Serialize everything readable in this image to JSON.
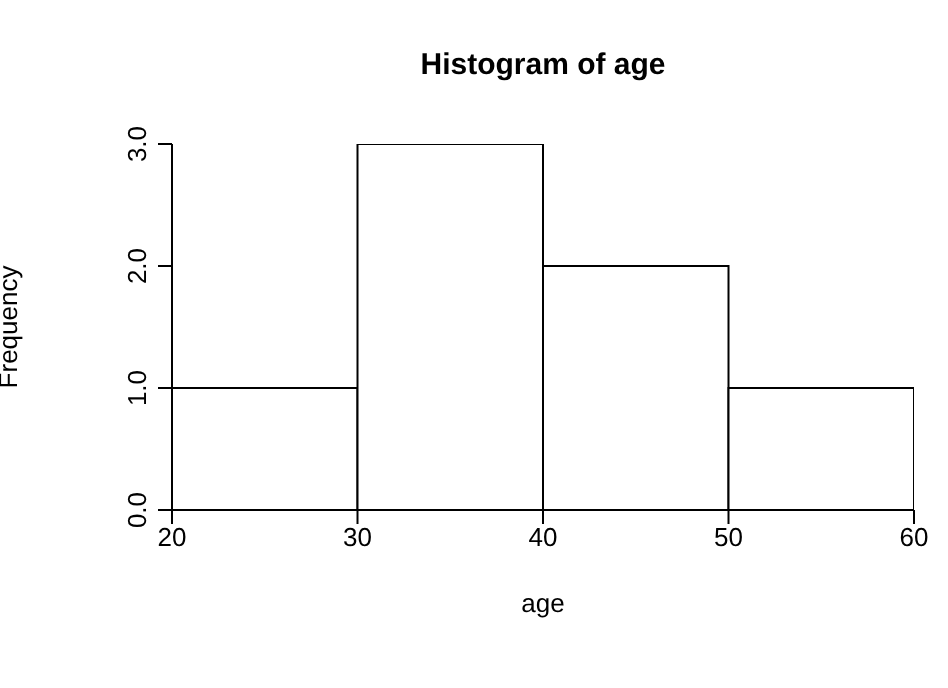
{
  "chart_data": {
    "type": "histogram",
    "title": "Histogram of age",
    "xlabel": "age",
    "ylabel": "Frequency",
    "bins": [
      20,
      30,
      40,
      50,
      60
    ],
    "values": [
      1,
      3,
      2,
      1
    ],
    "color": "#ffffff",
    "xlim": [
      20,
      60
    ],
    "xticks": [
      20,
      30,
      40,
      50,
      60
    ],
    "ylim": [
      0,
      3
    ],
    "yticks": [
      {
        "value": 0,
        "label": "0.0"
      },
      {
        "value": 1,
        "label": "1.0"
      },
      {
        "value": 2,
        "label": "2.0"
      },
      {
        "value": 3,
        "label": "3.0"
      }
    ],
    "grid": false,
    "legend": false
  }
}
